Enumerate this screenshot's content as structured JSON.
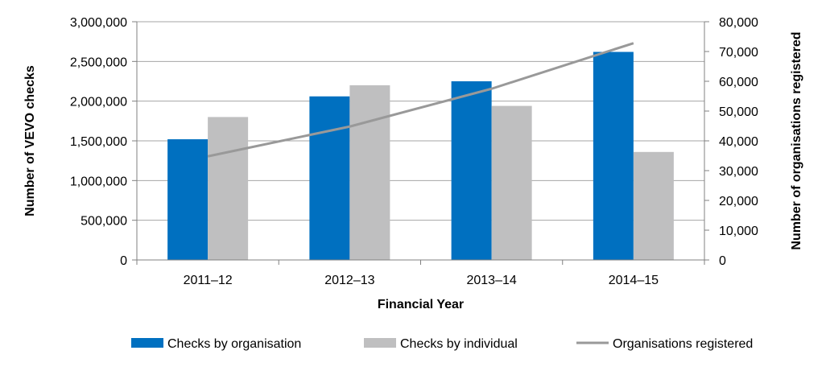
{
  "chart_data": {
    "type": "bar",
    "xlabel": "Financial Year",
    "ylabel": "Number of VEVO checks",
    "y2label": "Number of organisations registered",
    "categories": [
      "2011–12",
      "2012–13",
      "2013–14",
      "2014–15"
    ],
    "ylim": [
      0,
      3000000
    ],
    "y2lim": [
      0,
      80000
    ],
    "yticks": [
      "0",
      "500,000",
      "1,000,000",
      "1,500,000",
      "2,000,000",
      "2,500,000",
      "3,000,000"
    ],
    "y2ticks": [
      "0",
      "10,000",
      "20,000",
      "30,000",
      "40,000",
      "50,000",
      "60,000",
      "70,000",
      "80,000"
    ],
    "grid": true,
    "legend_position": "bottom",
    "series": [
      {
        "name": "Checks by organisation",
        "kind": "bar",
        "axis": "left",
        "color": "#0070C0",
        "values": [
          1520000,
          2060000,
          2250000,
          2620000
        ]
      },
      {
        "name": "Checks by individual",
        "kind": "bar",
        "axis": "left",
        "color": "#BFBFC0",
        "values": [
          1800000,
          2200000,
          1940000,
          1360000
        ]
      },
      {
        "name": "Organisations registered",
        "kind": "line",
        "axis": "right",
        "color": "#999999",
        "values": [
          34800,
          44800,
          57500,
          72800
        ]
      }
    ]
  }
}
